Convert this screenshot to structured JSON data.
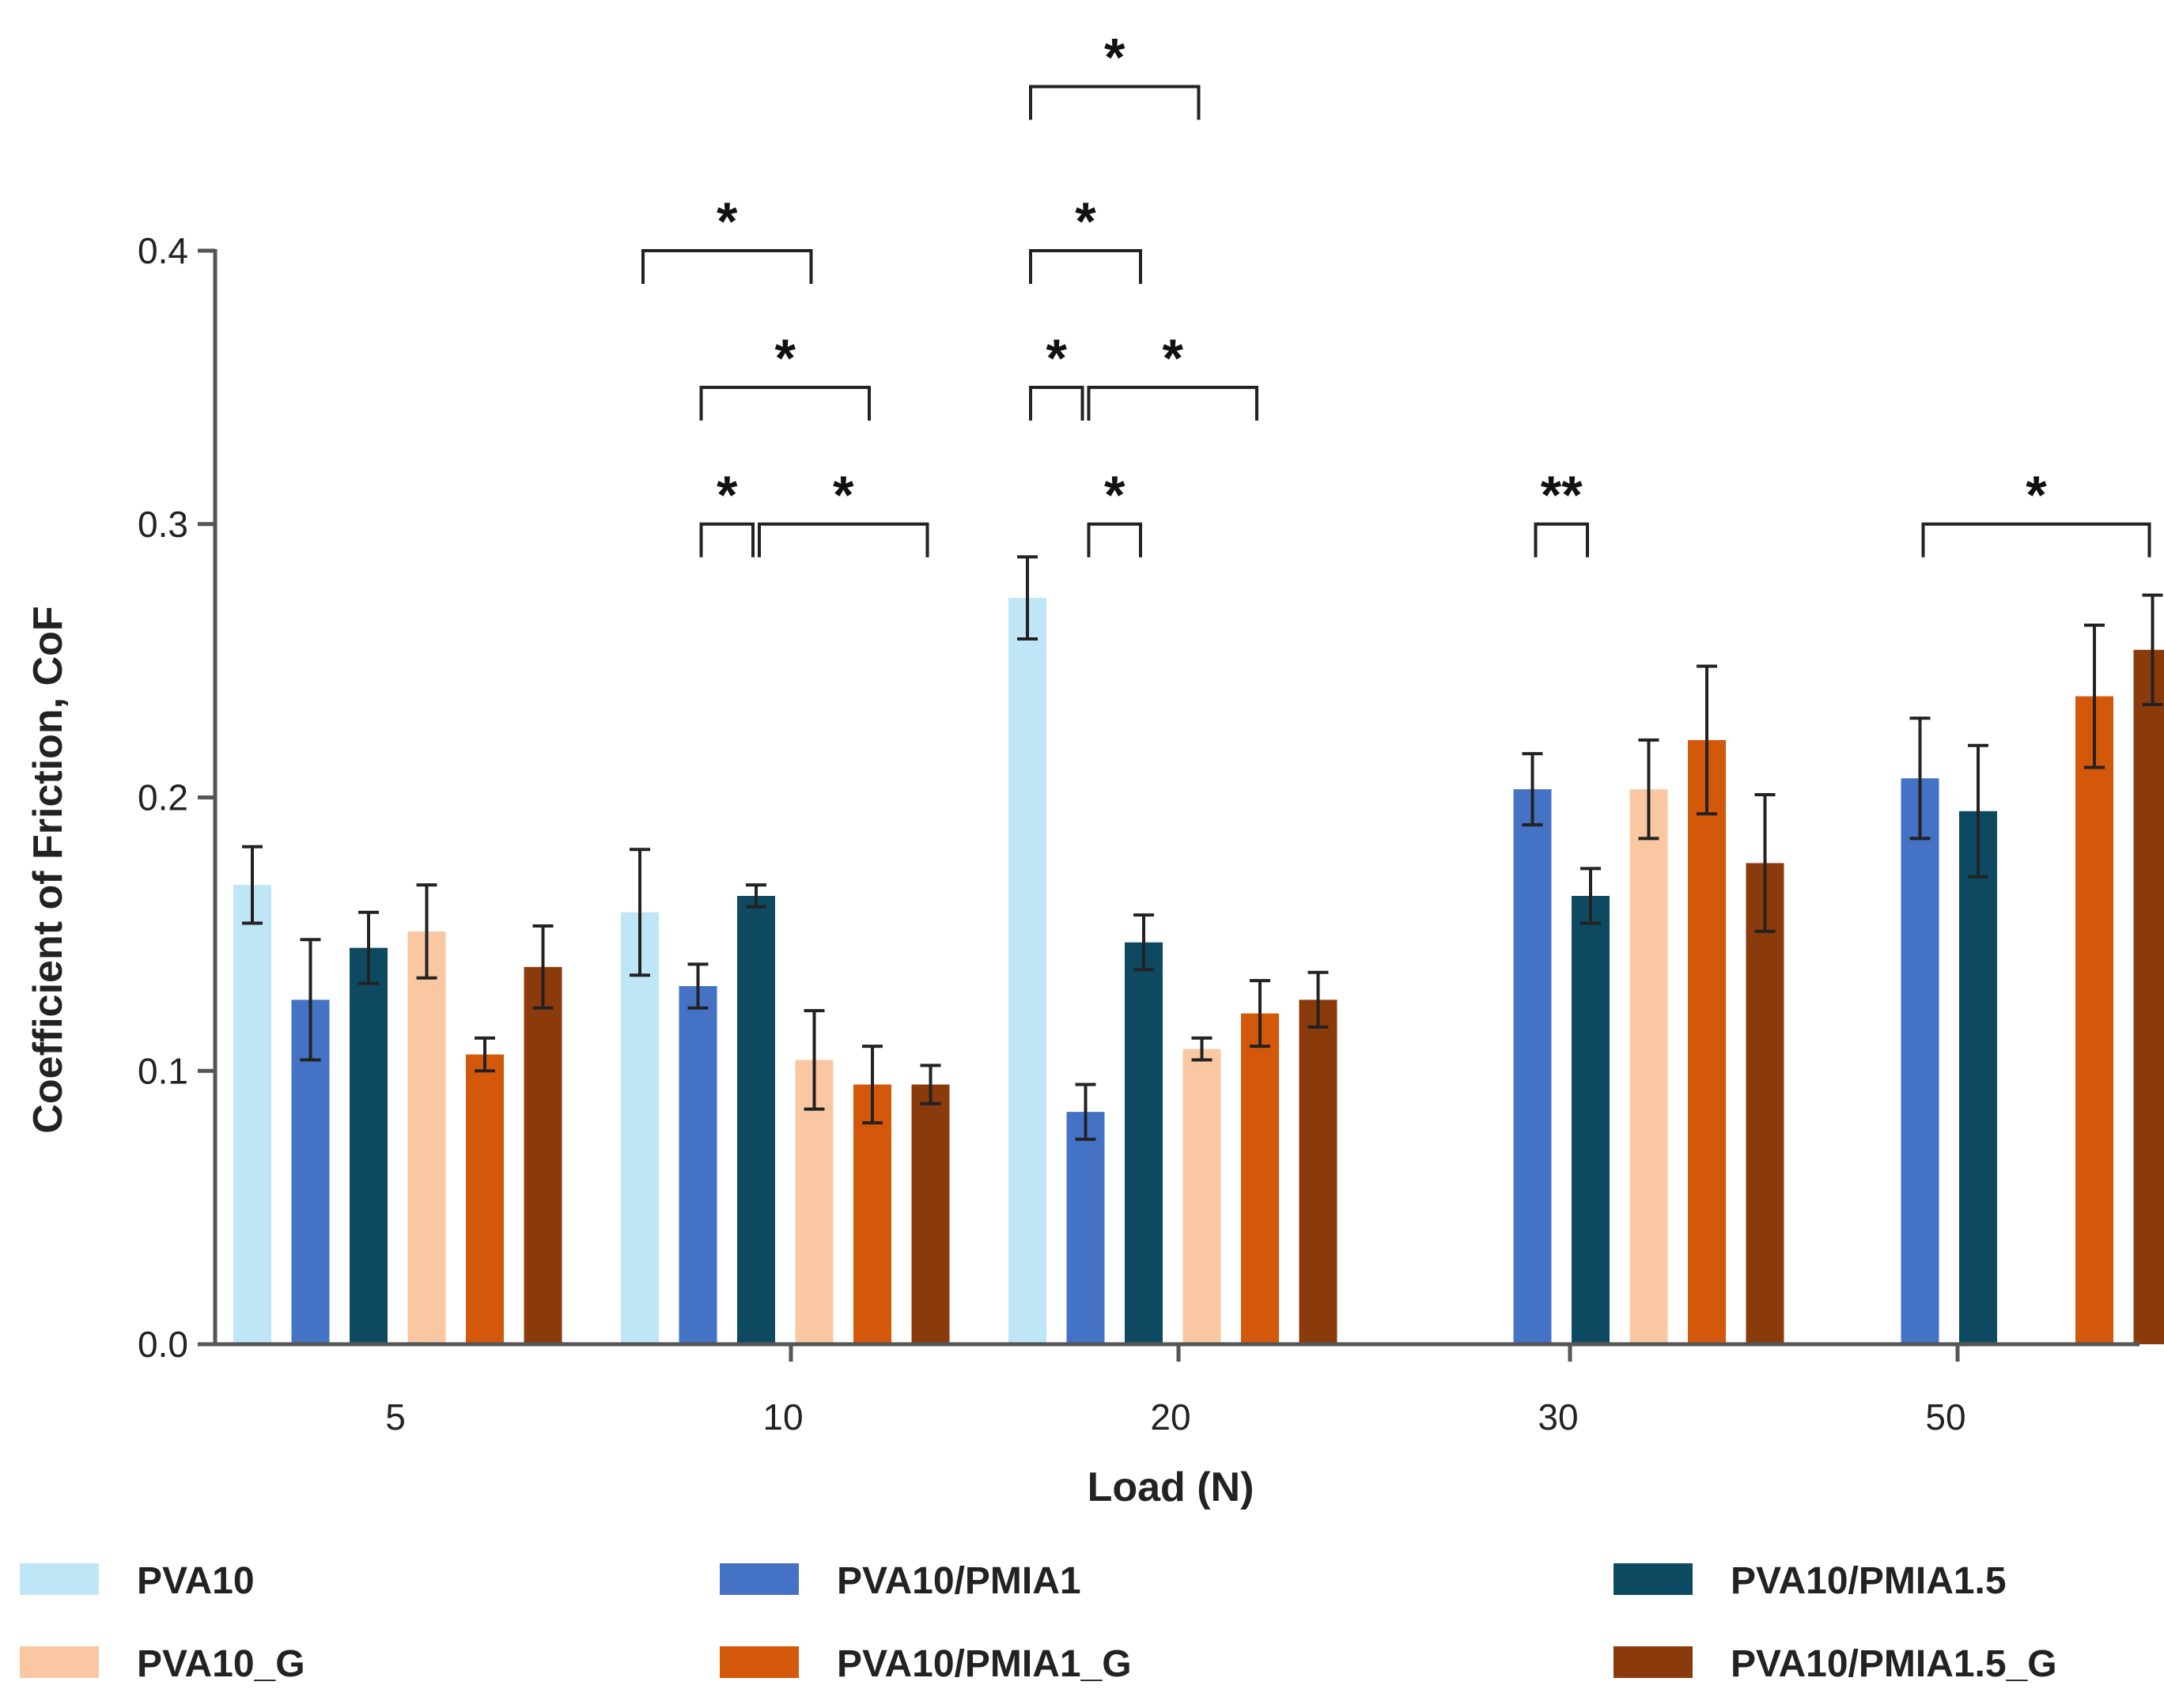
{
  "chart_data": {
    "type": "bar",
    "title": "",
    "xlabel": "Load (N)",
    "ylabel": "Coefficient of Friction, CoF",
    "ylim": [
      0,
      0.4
    ],
    "yticks": [
      "0.0",
      "0.1",
      "0.2",
      "0.3",
      "0.4"
    ],
    "categories": [
      "5",
      "10",
      "20",
      "30",
      "50"
    ],
    "series": [
      {
        "name": "PVA10",
        "color": "#bfe6f7",
        "values": [
          0.168,
          0.158,
          0.273,
          null,
          null
        ],
        "errors": [
          0.014,
          0.023,
          0.015,
          null,
          null
        ]
      },
      {
        "name": "PVA10/PMIA1",
        "color": "#4472c4",
        "values": [
          0.126,
          0.131,
          0.085,
          0.203,
          0.207
        ],
        "errors": [
          0.022,
          0.008,
          0.01,
          0.013,
          0.022
        ]
      },
      {
        "name": "PVA10/PMIA1.5",
        "color": "#0d4a62",
        "values": [
          0.145,
          0.164,
          0.147,
          0.164,
          0.195
        ],
        "errors": [
          0.013,
          0.004,
          0.01,
          0.01,
          0.024
        ]
      },
      {
        "name": "PVA10_G",
        "color": "#f9c8a3",
        "values": [
          0.151,
          0.104,
          0.108,
          0.203,
          null
        ],
        "errors": [
          0.017,
          0.018,
          0.004,
          0.018,
          null
        ]
      },
      {
        "name": "PVA10/PMIA1_G",
        "color": "#d4580a",
        "values": [
          0.106,
          0.095,
          0.121,
          0.221,
          0.237
        ],
        "errors": [
          0.006,
          0.014,
          0.012,
          0.027,
          0.026
        ]
      },
      {
        "name": "PVA10/PMIA1.5_G",
        "color": "#8b3a0b",
        "values": [
          0.138,
          0.095,
          0.126,
          0.176,
          0.254
        ],
        "errors": [
          0.015,
          0.007,
          0.01,
          0.025,
          0.02
        ]
      }
    ],
    "significance": [
      {
        "category": "10",
        "from": "PVA10",
        "to": "PVA10_G",
        "level": 0.4,
        "label": "*"
      },
      {
        "category": "10",
        "from": "PVA10/PMIA1",
        "to": "PVA10/PMIA1_G",
        "level": 0.35,
        "label": "*"
      },
      {
        "category": "10",
        "from": "PVA10/PMIA1",
        "to": "PVA10/PMIA1.5",
        "level": 0.3,
        "label": "*"
      },
      {
        "category": "10",
        "from": "PVA10/PMIA1.5",
        "to": "PVA10/PMIA1.5_G",
        "level": 0.3,
        "label": "*"
      },
      {
        "category": "20",
        "from": "PVA10",
        "to": "PVA10_G",
        "level": 0.46,
        "label": "*"
      },
      {
        "category": "20",
        "from": "PVA10",
        "to": "PVA10/PMIA1.5",
        "level": 0.4,
        "label": "*"
      },
      {
        "category": "20",
        "from": "PVA10",
        "to": "PVA10/PMIA1",
        "level": 0.35,
        "label": "*"
      },
      {
        "category": "20",
        "from": "PVA10/PMIA1",
        "to": "PVA10/PMIA1_G",
        "level": 0.35,
        "label": "*"
      },
      {
        "category": "20",
        "from": "PVA10/PMIA1",
        "to": "PVA10/PMIA1.5",
        "level": 0.3,
        "label": "*"
      },
      {
        "category": "30",
        "from": "PVA10/PMIA1",
        "to": "PVA10/PMIA1.5",
        "level": 0.3,
        "label": "**"
      },
      {
        "category": "50",
        "from": "PVA10/PMIA1",
        "to": "PVA10/PMIA1.5_G",
        "level": 0.3,
        "label": "*"
      }
    ],
    "legend_position": "bottom"
  }
}
